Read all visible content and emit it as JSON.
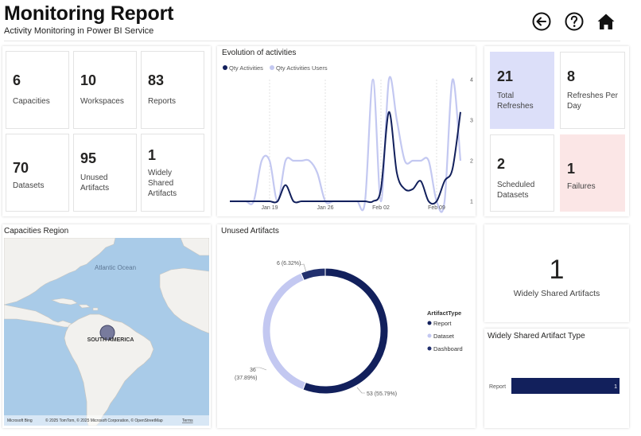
{
  "header": {
    "title": "Monitoring Report",
    "subtitle": "Activity Monitoring in Power BI Service"
  },
  "kpis": {
    "capacities": {
      "value": "6",
      "label": "Capacities"
    },
    "workspaces": {
      "value": "10",
      "label": "Workspaces"
    },
    "reports": {
      "value": "83",
      "label": "Reports"
    },
    "datasets": {
      "value": "70",
      "label": "Datasets"
    },
    "unused_artifacts": {
      "value": "95",
      "label": "Unused Artifacts"
    },
    "widely_shared": {
      "value": "1",
      "label": "Widely Shared Artifacts"
    }
  },
  "refresh": {
    "total": {
      "value": "21",
      "label": "Total Refreshes"
    },
    "per_day": {
      "value": "8",
      "label": "Refreshes Per Day"
    },
    "scheduled": {
      "value": "2",
      "label": "Scheduled Datasets"
    },
    "failures": {
      "value": "1",
      "label": "Failures"
    }
  },
  "evolution": {
    "title": "Evolution of activities",
    "legend": [
      "Qty Activities",
      "Qty Activities Users"
    ],
    "x_ticks": [
      "Jan 19",
      "Jan 26",
      "Feb 02",
      "Feb 09"
    ],
    "y_ticks": [
      "1",
      "2",
      "3",
      "4"
    ]
  },
  "map": {
    "title": "Capacities Region",
    "ocean_label": "Atlantic Ocean",
    "continent_label": "SOUTH AMERICA",
    "bing": "Microsoft Bing",
    "copyright": "© 2025 TomTom, © 2025 Microsoft Corporation, © OpenStreetMap",
    "terms": "Terms"
  },
  "unused": {
    "title": "Unused Artifacts",
    "legend_title": "ArtifactType",
    "legend": [
      "Report",
      "Dataset",
      "Dashboard"
    ],
    "labels": {
      "dashboard": "6 (6.32%)",
      "dataset_count": "36",
      "dataset_pct": "(37.89%)",
      "report": "53 (55.79%)"
    }
  },
  "widely_card": {
    "value": "1",
    "label": "Widely Shared Artifacts"
  },
  "widely_type": {
    "title": "Widely Shared Artifact Type",
    "bar_label": "Report",
    "bar_value": "1"
  },
  "colors": {
    "dark_navy": "#12205c",
    "light_periwinkle": "#c3c8f1",
    "blue_card": "#dcdff9",
    "pink_card": "#fbe6e6"
  },
  "chart_data": [
    {
      "type": "line",
      "title": "Evolution of activities",
      "x": [
        "Jan 14",
        "Jan 15",
        "Jan 16",
        "Jan 17",
        "Jan 18",
        "Jan 19",
        "Jan 20",
        "Jan 21",
        "Jan 22",
        "Jan 23",
        "Jan 24",
        "Jan 25",
        "Jan 26",
        "Jan 27",
        "Jan 28",
        "Jan 29",
        "Jan 30",
        "Jan 31",
        "Feb 01",
        "Feb 02",
        "Feb 03",
        "Feb 04",
        "Feb 05",
        "Feb 06",
        "Feb 07",
        "Feb 08",
        "Feb 09",
        "Feb 10",
        "Feb 11",
        "Feb 12"
      ],
      "series": [
        {
          "name": "Qty Activities",
          "values": [
            1,
            1,
            1,
            1,
            1,
            1,
            1,
            1.4,
            1,
            1,
            1,
            1,
            1,
            1,
            1,
            1,
            1,
            1,
            1,
            1.3,
            3.2,
            1.7,
            1.3,
            1.3,
            1.5,
            1,
            1,
            1.5,
            1.8,
            3.2
          ]
        },
        {
          "name": "Qty Activities Users",
          "values": [
            1,
            1,
            1,
            1,
            2,
            2,
            1,
            2,
            2,
            2,
            2,
            1.7,
            1,
            1,
            1,
            1,
            1,
            1,
            4,
            1,
            4,
            3,
            2,
            2,
            2,
            2,
            1,
            1,
            4,
            2
          ]
        }
      ],
      "y_ticks": [
        1,
        2,
        3,
        4
      ],
      "ylim": [
        1,
        4
      ]
    },
    {
      "type": "pie",
      "title": "Unused Artifacts",
      "categories": [
        "Report",
        "Dataset",
        "Dashboard"
      ],
      "values": [
        53,
        36,
        6
      ],
      "percent": [
        55.79,
        37.89,
        6.32
      ]
    },
    {
      "type": "bar",
      "title": "Widely Shared Artifact Type",
      "categories": [
        "Report"
      ],
      "values": [
        1
      ]
    }
  ]
}
